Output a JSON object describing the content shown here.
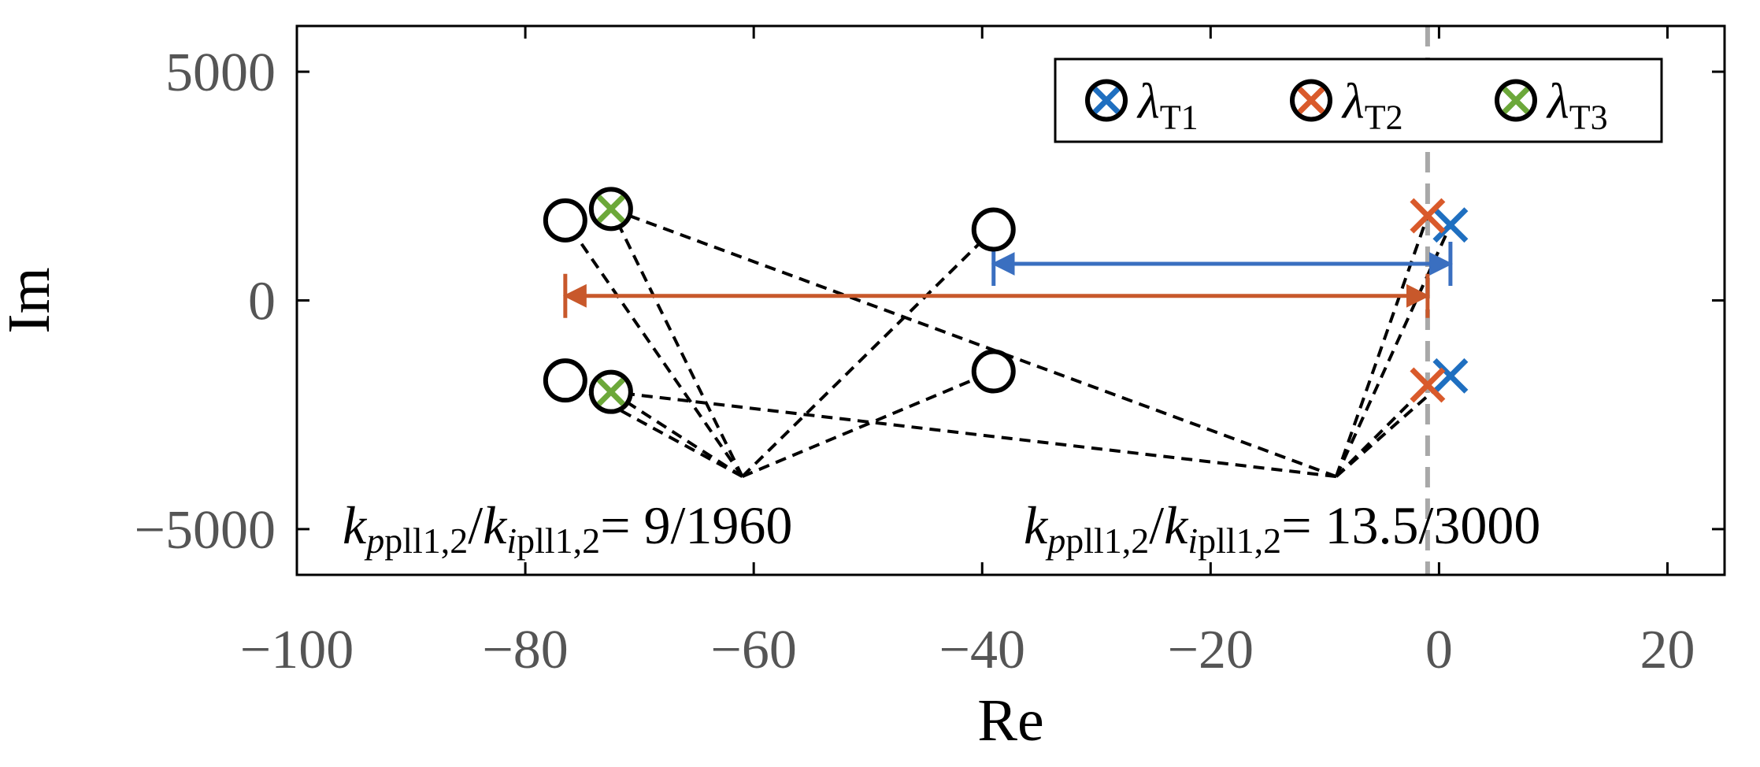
{
  "chart_data": {
    "type": "scatter",
    "title": "",
    "xlabel": "Re",
    "ylabel": "Im",
    "xlim": [
      -100,
      25
    ],
    "ylim": [
      -6000,
      6000
    ],
    "xticks": [
      -100,
      -80,
      -60,
      -40,
      -20,
      0,
      20
    ],
    "xtick_labels": [
      "−100",
      "−80",
      "−60",
      "−40",
      "−20",
      "0",
      "20"
    ],
    "yticks": [
      5000,
      0,
      -5000
    ],
    "ytick_labels": [
      "5000",
      "0",
      "−5000"
    ],
    "legend_position": "top-right",
    "series": [
      {
        "name": "λT1",
        "label_main": "λ",
        "label_sub": "T1",
        "color": "#1f6fc0",
        "marker": "circle-x",
        "points": [
          {
            "x": 1.0,
            "y": 1650
          },
          {
            "x": 1.0,
            "y": -1650
          }
        ]
      },
      {
        "name": "λT2",
        "label_main": "λ",
        "label_sub": "T2",
        "color": "#d95a2b",
        "marker": "circle-x",
        "points": [
          {
            "x": -1.0,
            "y": 1850
          },
          {
            "x": -1.0,
            "y": -1850
          }
        ]
      },
      {
        "name": "λT3",
        "label_main": "λ",
        "label_sub": "T3",
        "color": "#6ca83a",
        "marker": "circle-x",
        "points": [
          {
            "x": -72.5,
            "y": 2000
          },
          {
            "x": -72.5,
            "y": -2000
          }
        ]
      }
    ],
    "extra_points": [
      {
        "x": -76.5,
        "y": 1750
      },
      {
        "x": -76.5,
        "y": -1750
      },
      {
        "x": -39.0,
        "y": 1550
      },
      {
        "x": -39.0,
        "y": -1550
      }
    ],
    "vertical_dashed_line": {
      "x": -1.0,
      "color": "#999999"
    },
    "arrows": [
      {
        "from": {
          "x": 1.0,
          "y": 800
        },
        "to": {
          "x": -39.0,
          "y": 800
        },
        "color": "#3a6fc0"
      },
      {
        "from": {
          "x": -1.0,
          "y": 100
        },
        "to": {
          "x": -76.5,
          "y": 100
        },
        "color": "#c8582b"
      }
    ],
    "leader_lines": [
      {
        "anchor": {
          "x": -61.0,
          "y": -3850
        },
        "targets": [
          {
            "x": -76.5,
            "y": 1750
          },
          {
            "x": -76.5,
            "y": -1750
          },
          {
            "x": -72.5,
            "y": 2000
          },
          {
            "x": -72.5,
            "y": -2000
          },
          {
            "x": -39.0,
            "y": 1550
          },
          {
            "x": -39.0,
            "y": -1550
          }
        ]
      },
      {
        "anchor": {
          "x": -9.0,
          "y": -3850
        },
        "targets": [
          {
            "x": -72.5,
            "y": 2000
          },
          {
            "x": -72.5,
            "y": -2000
          },
          {
            "x": -1.0,
            "y": 1850
          },
          {
            "x": -1.0,
            "y": -1850
          },
          {
            "x": 1.0,
            "y": 1650
          },
          {
            "x": 1.0,
            "y": -1650
          }
        ]
      }
    ],
    "annotations": [
      {
        "position": "lower-left",
        "parts": [
          {
            "text": "k",
            "italic": true,
            "sub": false
          },
          {
            "text": "p",
            "italic": true,
            "sub": true
          },
          {
            "text": "pll1,2",
            "italic": false,
            "sub": true
          },
          {
            "text": "/",
            "italic": false,
            "sub": false
          },
          {
            "text": "k",
            "italic": true,
            "sub": false
          },
          {
            "text": "i",
            "italic": true,
            "sub": true
          },
          {
            "text": "pll1,2",
            "italic": false,
            "sub": true
          },
          {
            "text": "= 9/1960",
            "italic": false,
            "sub": false
          }
        ]
      },
      {
        "position": "lower-right",
        "parts": [
          {
            "text": "k",
            "italic": true,
            "sub": false
          },
          {
            "text": "p",
            "italic": true,
            "sub": true
          },
          {
            "text": "pll1,2",
            "italic": false,
            "sub": true
          },
          {
            "text": "/",
            "italic": false,
            "sub": false
          },
          {
            "text": "k",
            "italic": true,
            "sub": false
          },
          {
            "text": "i",
            "italic": true,
            "sub": true
          },
          {
            "text": "pll1,2",
            "italic": false,
            "sub": true
          },
          {
            "text": "= 13.5/3000",
            "italic": false,
            "sub": false
          }
        ]
      }
    ]
  }
}
